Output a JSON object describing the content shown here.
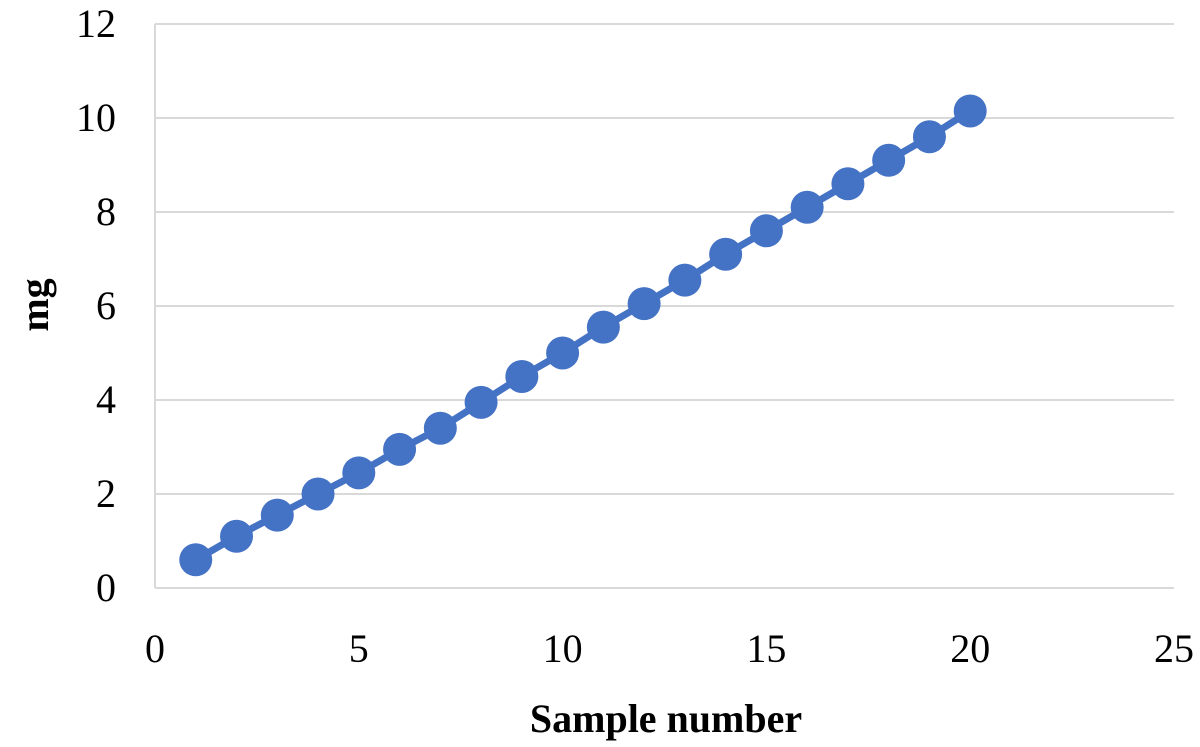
{
  "chart_data": {
    "type": "scatter",
    "xlabel": "Sample number",
    "ylabel": "mg",
    "xlim": [
      0,
      25
    ],
    "ylim": [
      0,
      12
    ],
    "xticks": [
      0,
      5,
      10,
      15,
      20,
      25
    ],
    "yticks": [
      0,
      2,
      4,
      6,
      8,
      10,
      12
    ],
    "grid": "horizontal",
    "series": [
      {
        "color": "#4472C4",
        "x": [
          1,
          2,
          3,
          4,
          5,
          6,
          7,
          8,
          9,
          10,
          11,
          12,
          13,
          14,
          15,
          16,
          17,
          18,
          19,
          20
        ],
        "y": [
          0.6,
          1.1,
          1.55,
          2.0,
          2.45,
          2.95,
          3.4,
          3.95,
          4.5,
          5.0,
          5.55,
          6.05,
          6.55,
          7.1,
          7.6,
          8.1,
          8.6,
          9.1,
          9.6,
          10.15
        ]
      }
    ]
  }
}
